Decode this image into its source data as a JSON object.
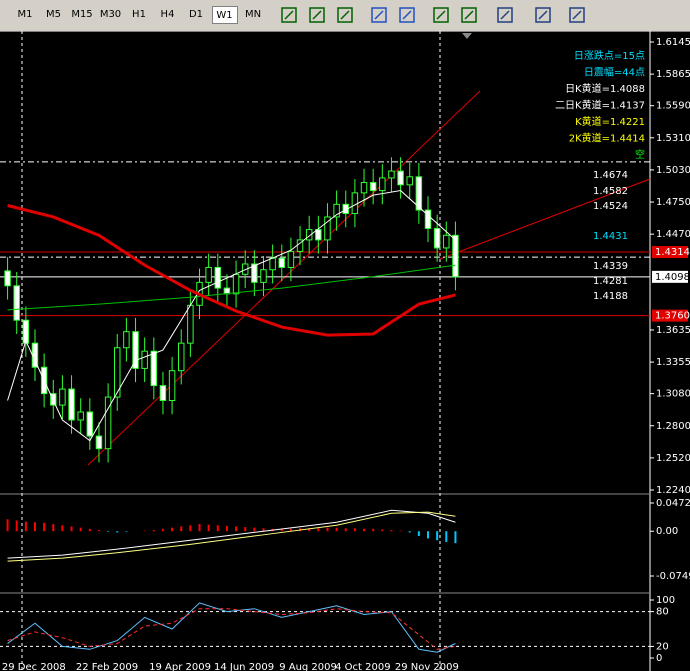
{
  "toolbar": {
    "timeframes": [
      "M1",
      "M5",
      "M15",
      "M30",
      "H1",
      "H4",
      "D1",
      "W1",
      "MN"
    ],
    "active": 7
  },
  "chart_data": [
    {
      "type": "candlestick",
      "xlim": [
        -0.5,
        49.5
      ],
      "ylim": [
        1.224,
        1.6145
      ],
      "yticks": [
        1.6145,
        1.5865,
        {
          "value": 1.559,
          "label": "1.5590"
        },
        {
          "value": 1.531,
          "label": "1.5310"
        },
        {
          "value": 1.503,
          "label": "1.5030"
        },
        {
          "value": 1.475,
          "label": "1.4750"
        },
        {
          "value": 1.447,
          "label": "1.4470"
        },
        1.3635,
        1.3355,
        {
          "value": 1.308,
          "label": "1.3080"
        },
        {
          "value": 1.28,
          "label": "1.2800"
        },
        {
          "value": 1.252,
          "label": "1.2520"
        },
        {
          "value": 1.224,
          "label": "1.2240"
        }
      ],
      "xticks": [
        {
          "value": 2,
          "label": "29 Dec 2008"
        },
        {
          "value": 10,
          "label": "22 Feb 2009"
        },
        {
          "value": 18,
          "label": "19 Apr 2009"
        },
        {
          "value": 25,
          "label": "14 Jun 2009"
        },
        {
          "value": 32,
          "label": "9 Aug 2009"
        },
        {
          "value": 38,
          "label": "4 Oct 2009"
        },
        {
          "value": 45,
          "label": "29 Nov 2009"
        }
      ],
      "open": [
        1.415,
        1.402,
        1.372,
        1.352,
        1.331,
        1.308,
        1.298,
        1.312,
        1.285,
        1.292,
        1.271,
        1.26,
        1.305,
        1.348,
        1.362,
        1.33,
        1.345,
        1.315,
        1.302,
        1.328,
        1.352,
        1.385,
        1.405,
        1.418,
        1.4,
        1.395,
        1.412,
        1.421,
        1.405,
        1.416,
        1.426,
        1.418,
        1.432,
        1.442,
        1.451,
        1.442,
        1.462,
        1.473,
        1.465,
        1.483,
        1.492,
        1.485,
        1.496,
        1.502,
        1.49,
        1.497,
        1.468,
        1.452,
        1.435,
        1.446
      ],
      "high": [
        1.427,
        1.414,
        1.384,
        1.364,
        1.343,
        1.32,
        1.324,
        1.324,
        1.304,
        1.304,
        1.283,
        1.317,
        1.36,
        1.374,
        1.374,
        1.357,
        1.357,
        1.327,
        1.34,
        1.364,
        1.397,
        1.417,
        1.43,
        1.43,
        1.412,
        1.424,
        1.433,
        1.433,
        1.428,
        1.438,
        1.438,
        1.444,
        1.454,
        1.463,
        1.463,
        1.474,
        1.485,
        1.485,
        1.495,
        1.504,
        1.504,
        1.508,
        1.514,
        1.514,
        1.509,
        1.509,
        1.48,
        1.464,
        1.458,
        1.458
      ],
      "low": [
        1.39,
        1.36,
        1.34,
        1.319,
        1.296,
        1.286,
        1.286,
        1.273,
        1.273,
        1.259,
        1.248,
        1.248,
        1.293,
        1.336,
        1.318,
        1.318,
        1.303,
        1.29,
        1.29,
        1.316,
        1.34,
        1.373,
        1.393,
        1.388,
        1.383,
        1.383,
        1.4,
        1.393,
        1.393,
        1.404,
        1.406,
        1.406,
        1.42,
        1.43,
        1.43,
        1.43,
        1.45,
        1.453,
        1.453,
        1.471,
        1.473,
        1.473,
        1.484,
        1.478,
        1.478,
        1.456,
        1.44,
        1.423,
        1.423,
        1.398
      ],
      "close": [
        1.402,
        1.372,
        1.352,
        1.331,
        1.308,
        1.298,
        1.312,
        1.285,
        1.292,
        1.271,
        1.26,
        1.305,
        1.348,
        1.362,
        1.33,
        1.345,
        1.315,
        1.302,
        1.328,
        1.352,
        1.385,
        1.405,
        1.418,
        1.4,
        1.395,
        1.412,
        1.421,
        1.405,
        1.416,
        1.426,
        1.418,
        1.432,
        1.442,
        1.451,
        1.442,
        1.462,
        1.473,
        1.465,
        1.483,
        1.492,
        1.485,
        1.496,
        1.502,
        1.49,
        1.497,
        1.468,
        1.452,
        1.435,
        1.446,
        1.4098
      ],
      "candle_color": "#33ff33",
      "series": [
        {
          "color": "#00c000",
          "width": 1,
          "x": [
            0,
            10,
            20,
            30,
            40,
            49
          ],
          "values": [
            1.381,
            1.386,
            1.392,
            1.4,
            1.41,
            1.42
          ]
        },
        {
          "color": "#ffffff",
          "width": 1,
          "x": [
            0,
            2,
            6,
            9,
            14,
            17,
            21,
            26,
            31,
            36,
            40,
            43,
            49
          ],
          "values": [
            1.302,
            1.354,
            1.285,
            1.267,
            1.337,
            1.346,
            1.398,
            1.416,
            1.433,
            1.464,
            1.481,
            1.485,
            1.442
          ]
        },
        {
          "color": "#e00000",
          "width": 3,
          "x": [
            0,
            5,
            10,
            15,
            20,
            25,
            30,
            35,
            40,
            45,
            49
          ],
          "values": [
            1.472,
            1.462,
            1.446,
            1.42,
            1.398,
            1.38,
            1.366,
            1.359,
            1.36,
            1.386,
            1.394
          ]
        }
      ],
      "hlines": [
        {
          "value": 1.51,
          "color": "#ffffff"
        },
        {
          "value": 1.427,
          "color": "#ffffff"
        }
      ],
      "price_markers": [
        {
          "price": 1.4314,
          "color": "#e00000",
          "text_color": "#ffffff"
        },
        {
          "price": 1.4098,
          "color": "#ffffff",
          "text_color": "#000000"
        },
        {
          "price": {
            "value": 1.376,
            "label": "1.3760"
          },
          "color": "#e00000",
          "text_color": "#ffffff"
        }
      ],
      "annotations": [
        {
          "text": "日涨跌点=15点",
          "color": "#00e0ff"
        },
        {
          "text": "日震幅=44点",
          "color": "#00e0ff"
        },
        {
          "text": "日K黄道=1.4088",
          "color": "#ffffff"
        },
        {
          "text": "二日K黄道=1.4137",
          "color": "#ffffff"
        },
        {
          "text": "K黄道=1.4221",
          "color": "#ffff00"
        },
        {
          "text": "2K黄道=1.4414",
          "color": "#ffff00"
        },
        {
          "text": "空",
          "color": "#00ff00"
        }
      ],
      "levels": [
        {
          "text": "1.4674",
          "color": "#ffffff"
        },
        {
          "text": "1.4582",
          "color": "#ffffff"
        },
        {
          "text": "1.4524",
          "color": "#ffffff"
        },
        {
          "text": "1.4431",
          "color": "#00e0ff"
        },
        {
          "text": "1.4339",
          "color": "#ffffff"
        },
        {
          "text": "1.4281",
          "color": "#ffffff"
        },
        {
          "text": "1.4188",
          "color": "#ffffff"
        }
      ]
    },
    {
      "type": "macd",
      "xlim": [
        -0.5,
        49.5
      ],
      "ylim": [
        -0.0749,
        0.04722
      ],
      "yticks": [
        0.04722,
        {
          "value": 0,
          "label": "0.00"
        },
        -0.0749
      ],
      "histogram": {
        "positive_color": "#ff0000",
        "negative_color": "#00c8ff",
        "values": [
          0.02,
          0.018,
          0.016,
          0.015,
          0.014,
          0.012,
          0.01,
          0.008,
          0.006,
          0.004,
          0.002,
          -0.001,
          -0.002,
          -0.001,
          0.0,
          0.001,
          0.002,
          0.004,
          0.006,
          0.008,
          0.01,
          0.012,
          0.011,
          0.01,
          0.009,
          0.008,
          0.007,
          0.006,
          0.005,
          0.004,
          0.004,
          0.004,
          0.005,
          0.005,
          0.005,
          0.006,
          0.006,
          0.005,
          0.005,
          0.004,
          0.004,
          0.003,
          0.002,
          0.001,
          -0.002,
          -0.008,
          -0.012,
          -0.015,
          -0.018,
          -0.02
        ]
      },
      "series": [
        {
          "color": "#ffffff",
          "width": 1,
          "x": [
            0,
            6,
            12,
            20,
            28,
            36,
            42,
            46,
            49
          ],
          "values": [
            -0.045,
            -0.04,
            -0.03,
            -0.015,
            0.0,
            0.015,
            0.035,
            0.03,
            0.015
          ]
        },
        {
          "color": "#ffff80",
          "width": 1,
          "x": [
            0,
            6,
            12,
            20,
            28,
            36,
            42,
            46,
            49
          ],
          "values": [
            -0.05,
            -0.045,
            -0.036,
            -0.022,
            -0.006,
            0.01,
            0.03,
            0.032,
            0.025
          ]
        }
      ]
    },
    {
      "type": "stochastic",
      "xlim": [
        -0.5,
        49.5
      ],
      "ylim": [
        0,
        100
      ],
      "yticks": [
        100,
        80,
        20,
        0
      ],
      "grid": [
        80,
        20
      ],
      "series": [
        {
          "color": "#60c0ff",
          "width": 1,
          "x": [
            0,
            3,
            6,
            9,
            12,
            15,
            18,
            21,
            24,
            27,
            30,
            33,
            36,
            39,
            42,
            45,
            47,
            49
          ],
          "values": [
            25,
            60,
            20,
            15,
            30,
            70,
            50,
            95,
            80,
            85,
            70,
            80,
            90,
            75,
            80,
            15,
            10,
            25
          ]
        },
        {
          "color": "#ff3030",
          "width": 1,
          "dash": true,
          "x": [
            0,
            3,
            6,
            9,
            12,
            15,
            18,
            21,
            24,
            27,
            30,
            33,
            36,
            39,
            42,
            45,
            47,
            49
          ],
          "values": [
            30,
            45,
            35,
            20,
            25,
            55,
            60,
            85,
            85,
            80,
            75,
            78,
            85,
            80,
            78,
            40,
            15,
            20
          ]
        }
      ]
    }
  ]
}
